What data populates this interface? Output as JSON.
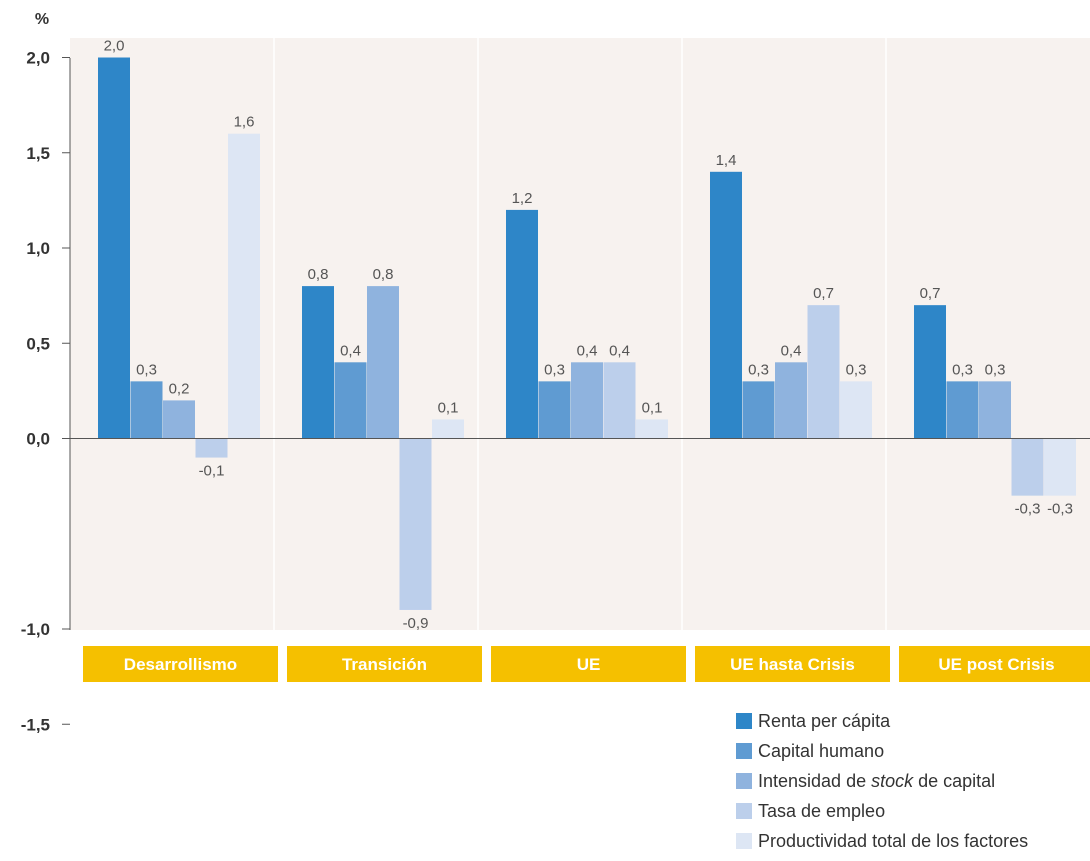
{
  "chart_data": {
    "type": "bar",
    "unit_label": "%",
    "categories": [
      "Desarrollismo",
      "Transición",
      "UE",
      "UE hasta Crisis",
      "UE post Crisis"
    ],
    "series": [
      {
        "name": "Renta per cápita",
        "color": "#2e86c8",
        "values": [
          2.0,
          0.8,
          1.2,
          1.4,
          0.7
        ]
      },
      {
        "name": "Capital humano",
        "color": "#5f9bd2",
        "values": [
          0.3,
          0.4,
          0.3,
          0.3,
          0.3
        ]
      },
      {
        "name": "Intensidad de stock de capital",
        "name_parts": [
          "Intensidad de ",
          "stock",
          " de capital"
        ],
        "color": "#8fb3de",
        "values": [
          0.2,
          0.8,
          0.4,
          0.4,
          0.3
        ]
      },
      {
        "name": "Tasa de empleo",
        "color": "#bccfeb",
        "values": [
          -0.1,
          -0.9,
          0.4,
          0.7,
          -0.3
        ]
      },
      {
        "name": "Productividad total de los factores",
        "color": "#dde6f4",
        "values": [
          1.6,
          0.1,
          0.1,
          0.3,
          -0.3
        ]
      }
    ],
    "data_labels": [
      [
        "2,0",
        "0,8",
        "1,2",
        "1,4",
        "0,7"
      ],
      [
        "0,3",
        "0,4",
        "0,3",
        "0,3",
        "0,3"
      ],
      [
        "0,2",
        "0,8",
        "0,4",
        "0,4",
        "0,3"
      ],
      [
        "-0,1",
        "-0,9",
        "0,4",
        "0,7",
        "-0,3"
      ],
      [
        "1,6",
        "0,1",
        "0,1",
        "0,3",
        "-0,3"
      ]
    ],
    "ylim": [
      -1.5,
      2.0
    ],
    "yticks": [
      2.0,
      1.5,
      1.0,
      0.5,
      0.0,
      -1.0,
      -1.5
    ],
    "ytick_labels": [
      "2,0",
      "1,5",
      "1,0",
      "0,5",
      "0,0",
      "-1,0",
      "-1,5"
    ],
    "grid": false,
    "legend_position": "bottom-right",
    "colors": {
      "plot_background": "#f7f2ef",
      "category_band": "#f5c000"
    }
  }
}
